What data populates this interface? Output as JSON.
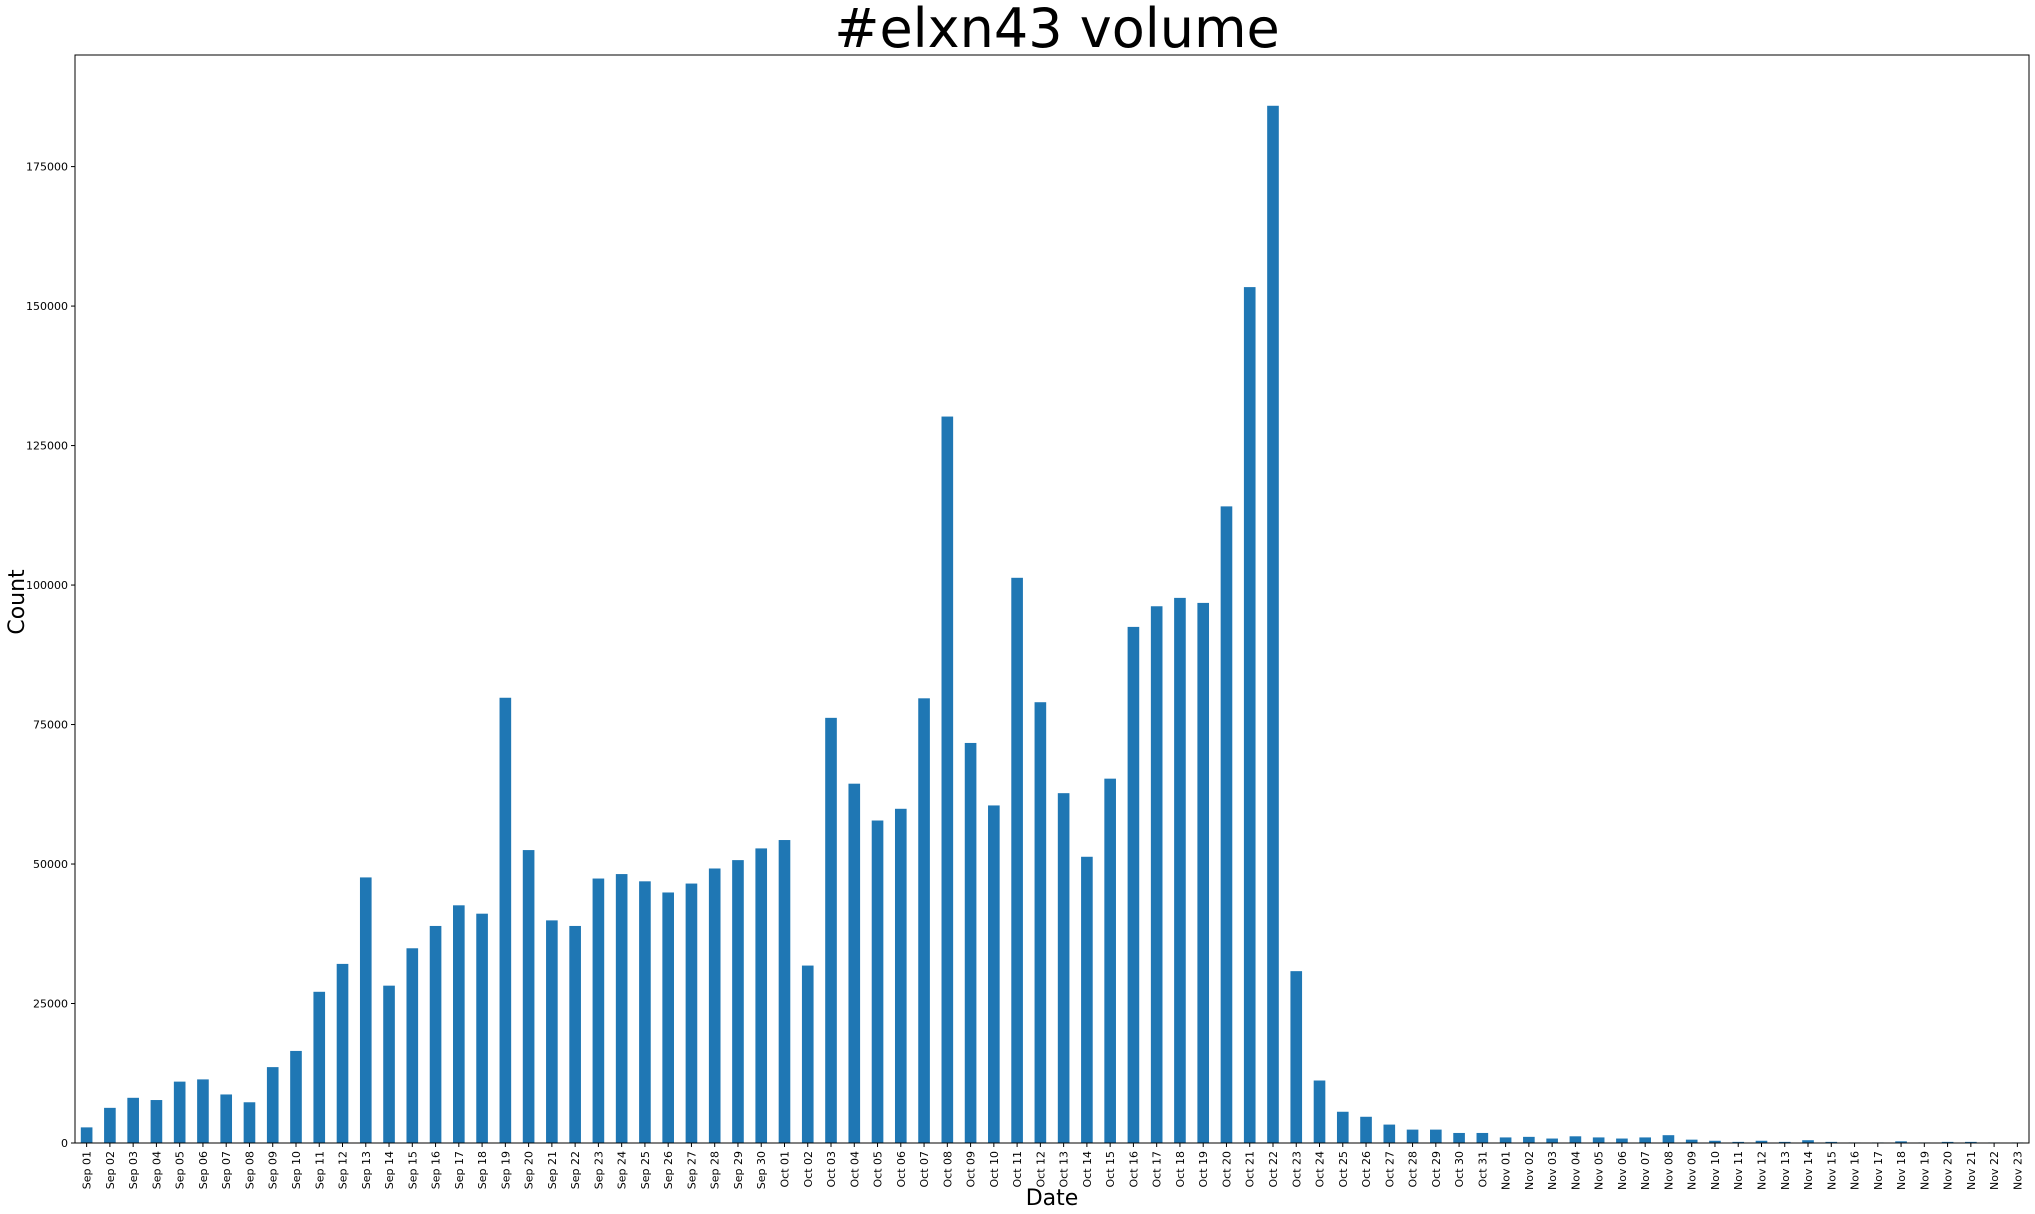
{
  "chart_data": {
    "type": "bar",
    "title": "#elxn43 volume",
    "xlabel": "Date",
    "ylabel": "Count",
    "ylim": [
      0,
      195000
    ],
    "yticks": [
      0,
      25000,
      50000,
      75000,
      100000,
      125000,
      150000,
      175000
    ],
    "grid": false,
    "legend": "none",
    "bar_color": "#1f77b4",
    "categories": [
      "Sep 01",
      "Sep 02",
      "Sep 03",
      "Sep 04",
      "Sep 05",
      "Sep 06",
      "Sep 07",
      "Sep 08",
      "Sep 09",
      "Sep 10",
      "Sep 11",
      "Sep 12",
      "Sep 13",
      "Sep 14",
      "Sep 15",
      "Sep 16",
      "Sep 17",
      "Sep 18",
      "Sep 19",
      "Sep 20",
      "Sep 21",
      "Sep 22",
      "Sep 23",
      "Sep 24",
      "Sep 25",
      "Sep 26",
      "Sep 27",
      "Sep 28",
      "Sep 29",
      "Sep 30",
      "Oct 01",
      "Oct 02",
      "Oct 03",
      "Oct 04",
      "Oct 05",
      "Oct 06",
      "Oct 07",
      "Oct 08",
      "Oct 09",
      "Oct 10",
      "Oct 11",
      "Oct 12",
      "Oct 13",
      "Oct 14",
      "Oct 15",
      "Oct 16",
      "Oct 17",
      "Oct 18",
      "Oct 19",
      "Oct 20",
      "Oct 21",
      "Oct 22",
      "Oct 23",
      "Oct 24",
      "Oct 25",
      "Oct 26",
      "Oct 27",
      "Oct 28",
      "Oct 29",
      "Oct 30",
      "Oct 31",
      "Nov 01",
      "Nov 02",
      "Nov 03",
      "Nov 04",
      "Nov 05",
      "Nov 06",
      "Nov 07",
      "Nov 08",
      "Nov 09",
      "Nov 10",
      "Nov 11",
      "Nov 12",
      "Nov 13",
      "Nov 14",
      "Nov 15",
      "Nov 16",
      "Nov 17",
      "Nov 18",
      "Nov 19",
      "Nov 20",
      "Nov 21",
      "Nov 22",
      "Nov 23"
    ],
    "values": [
      2800,
      6300,
      8100,
      7700,
      11000,
      11400,
      8700,
      7300,
      13600,
      16500,
      27100,
      32100,
      47600,
      28200,
      34900,
      38900,
      42600,
      41100,
      79800,
      52500,
      39900,
      38900,
      47400,
      48200,
      46900,
      44900,
      46500,
      49200,
      50700,
      52800,
      54300,
      31800,
      76200,
      64400,
      57800,
      59900,
      79700,
      130200,
      71700,
      60500,
      101300,
      79000,
      62700,
      51300,
      65300,
      92500,
      96200,
      97700,
      96800,
      114100,
      153400,
      185900,
      30800,
      11200,
      5600,
      4700,
      3300,
      2400,
      2400,
      1800,
      1800,
      1000,
      1100,
      800,
      1200,
      1000,
      800,
      1000,
      1400,
      600,
      400,
      200,
      400,
      200,
      500,
      200,
      100,
      100,
      300,
      100,
      200,
      200,
      100,
      100
    ]
  }
}
